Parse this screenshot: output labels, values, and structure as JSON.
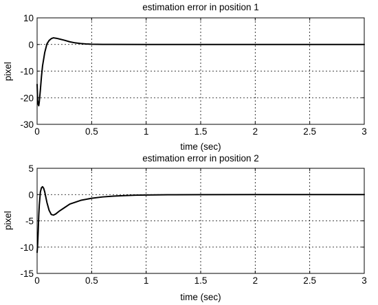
{
  "chart_data": [
    {
      "type": "line",
      "title": "estimation error in position 1",
      "xlabel": "time (sec)",
      "ylabel": "pixel",
      "xlim": [
        0,
        3
      ],
      "ylim": [
        -30,
        10
      ],
      "xticks": [
        0,
        0.5,
        1,
        1.5,
        2,
        2.5,
        3
      ],
      "xtick_labels": [
        "0",
        "0.5",
        "1",
        "1.5",
        "2",
        "2.5",
        "3"
      ],
      "yticks": [
        -30,
        -20,
        -10,
        0,
        10
      ],
      "ytick_labels": [
        "-30",
        "-20",
        "-10",
        "0",
        "10"
      ],
      "grid": true,
      "line_color": "#000000",
      "series": [
        {
          "x": [
            0,
            0.005,
            0.01,
            0.015,
            0.02,
            0.03,
            0.04,
            0.05,
            0.07,
            0.09,
            0.11,
            0.13,
            0.15,
            0.18,
            0.21,
            0.25,
            0.3,
            0.35,
            0.4,
            0.45,
            0.5,
            0.6,
            0.7,
            1.0,
            1.5,
            2.0,
            2.5,
            3.0
          ],
          "y": [
            -15,
            -21,
            -22.5,
            -23,
            -21.5,
            -17,
            -12,
            -8,
            -3,
            0.2,
            1.5,
            2.2,
            2.5,
            2.3,
            2.0,
            1.6,
            1.0,
            0.6,
            0.35,
            0.2,
            0.1,
            0.04,
            0.02,
            0.01,
            0.0,
            0.0,
            0.0,
            0.0
          ]
        }
      ]
    },
    {
      "type": "line",
      "title": "estimation error in position 2",
      "xlabel": "time (sec)",
      "ylabel": "pixel",
      "xlim": [
        0,
        3
      ],
      "ylim": [
        -15,
        5
      ],
      "xticks": [
        0,
        0.5,
        1,
        1.5,
        2,
        2.5,
        3
      ],
      "xtick_labels": [
        "0",
        "0.5",
        "1",
        "1.5",
        "2",
        "2.5",
        "3"
      ],
      "yticks": [
        -15,
        -10,
        -5,
        0,
        5
      ],
      "ytick_labels": [
        "-15",
        "-10",
        "-5",
        "0",
        "5"
      ],
      "grid": true,
      "line_color": "#000000",
      "series": [
        {
          "x": [
            0,
            0.005,
            0.01,
            0.015,
            0.02,
            0.03,
            0.04,
            0.05,
            0.06,
            0.07,
            0.09,
            0.11,
            0.13,
            0.15,
            0.17,
            0.2,
            0.25,
            0.3,
            0.4,
            0.5,
            0.6,
            0.7,
            0.8,
            0.9,
            1.0,
            1.2,
            1.5,
            2.0,
            2.5,
            3.0
          ],
          "y": [
            -11,
            -9.5,
            -7,
            -4,
            -2,
            0.5,
            1.3,
            1.5,
            1.2,
            0.5,
            -1.5,
            -3.0,
            -3.8,
            -3.9,
            -3.7,
            -3.2,
            -2.5,
            -1.8,
            -1.1,
            -0.7,
            -0.45,
            -0.3,
            -0.2,
            -0.12,
            -0.08,
            -0.04,
            -0.02,
            0.0,
            0.0,
            0.0
          ]
        }
      ]
    }
  ]
}
